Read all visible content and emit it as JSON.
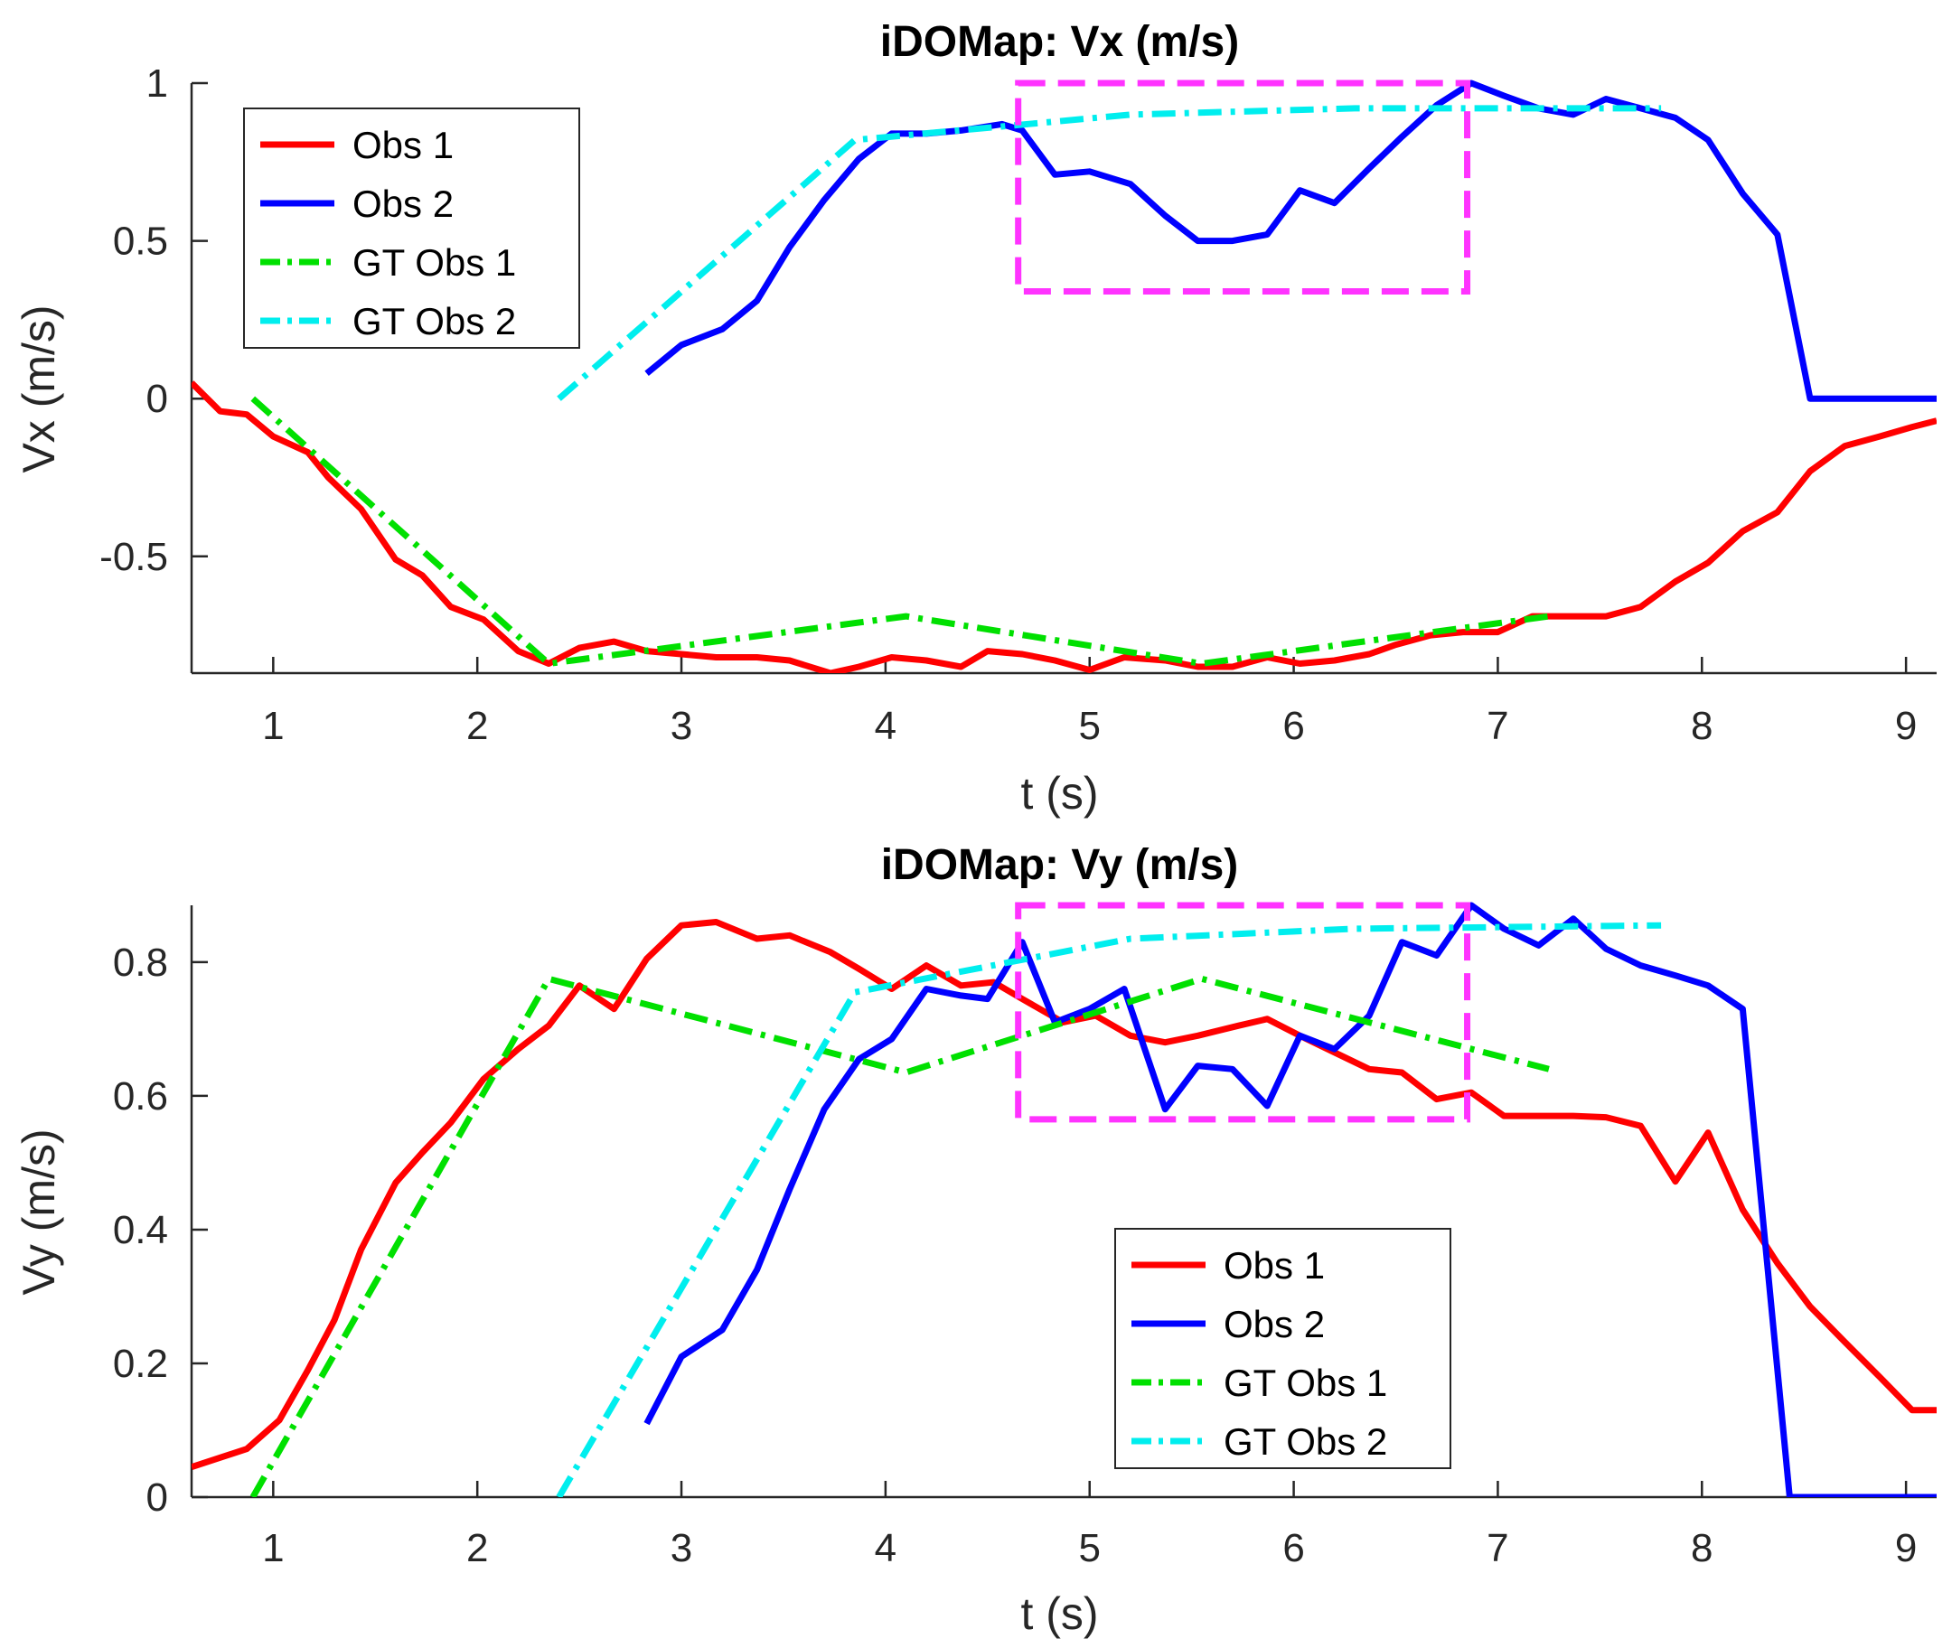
{
  "chart_data": [
    {
      "type": "line",
      "title": "iDOMap: Vx (m/s)",
      "xlabel": "t (s)",
      "ylabel": "Vx (m/s)",
      "xlim": [
        0.6,
        9.15
      ],
      "ylim": [
        -0.87,
        1.0
      ],
      "xticks": [
        1,
        2,
        3,
        4,
        5,
        6,
        7,
        8,
        9
      ],
      "xtick_labels": [
        "1",
        "2",
        "3",
        "4",
        "5",
        "6",
        "7",
        "8",
        "9"
      ],
      "yticks": [
        -0.5,
        0,
        0.5,
        1
      ],
      "ytick_labels": [
        "-0.5",
        "0",
        "0.5",
        "1"
      ],
      "legend_position": "top-left",
      "series": [
        {
          "name": "Obs 1",
          "color": "#ff0000",
          "style": "solid",
          "x": [
            0.6,
            0.74,
            0.87,
            1.0,
            1.17,
            1.27,
            1.43,
            1.6,
            1.73,
            1.87,
            2.03,
            2.2,
            2.35,
            2.5,
            2.67,
            2.83,
            3.0,
            3.17,
            3.37,
            3.53,
            3.73,
            3.87,
            4.03,
            4.2,
            4.37,
            4.5,
            4.67,
            4.83,
            5.0,
            5.17,
            5.37,
            5.53,
            5.7,
            5.87,
            6.03,
            6.2,
            6.37,
            6.5,
            6.67,
            6.83,
            7.0,
            7.17,
            7.37,
            7.53,
            7.7,
            7.87,
            8.03,
            8.2,
            8.37,
            8.53,
            8.7,
            8.87,
            9.03,
            9.15
          ],
          "values": [
            0.05,
            -0.04,
            -0.05,
            -0.12,
            -0.17,
            -0.25,
            -0.35,
            -0.51,
            -0.56,
            -0.66,
            -0.7,
            -0.8,
            -0.84,
            -0.79,
            -0.77,
            -0.8,
            -0.81,
            -0.82,
            -0.82,
            -0.83,
            -0.87,
            -0.85,
            -0.82,
            -0.83,
            -0.85,
            -0.8,
            -0.81,
            -0.83,
            -0.86,
            -0.82,
            -0.83,
            -0.85,
            -0.85,
            -0.82,
            -0.84,
            -0.83,
            -0.81,
            -0.78,
            -0.75,
            -0.74,
            -0.74,
            -0.69,
            -0.69,
            -0.69,
            -0.66,
            -0.58,
            -0.52,
            -0.42,
            -0.36,
            -0.23,
            -0.15,
            -0.12,
            -0.09,
            -0.07
          ]
        },
        {
          "name": "Obs 2",
          "color": "#0000ff",
          "style": "solid",
          "x": [
            2.83,
            3.0,
            3.2,
            3.37,
            3.53,
            3.7,
            3.87,
            4.03,
            4.2,
            4.37,
            4.57,
            4.67,
            4.83,
            5.0,
            5.2,
            5.37,
            5.53,
            5.7,
            5.87,
            6.03,
            6.2,
            6.37,
            6.53,
            6.7,
            6.87,
            7.03,
            7.2,
            7.37,
            7.53,
            7.7,
            7.87,
            8.03,
            8.2,
            8.37,
            8.53,
            8.63,
            8.8,
            8.97,
            9.15
          ],
          "values": [
            0.08,
            0.17,
            0.22,
            0.31,
            0.48,
            0.63,
            0.76,
            0.84,
            0.84,
            0.85,
            0.87,
            0.85,
            0.71,
            0.72,
            0.68,
            0.58,
            0.5,
            0.5,
            0.52,
            0.66,
            0.62,
            0.73,
            0.83,
            0.93,
            1.0,
            0.96,
            0.92,
            0.9,
            0.95,
            0.92,
            0.89,
            0.82,
            0.65,
            0.52,
            0.0,
            0.0,
            0.0,
            0.0,
            0.0
          ]
        },
        {
          "name": "GT Obs 1",
          "color": "#00e000",
          "style": "dashdot",
          "x": [
            0.9,
            2.35,
            4.1,
            5.55,
            7.25
          ],
          "values": [
            0.0,
            -0.84,
            -0.69,
            -0.84,
            -0.69
          ]
        },
        {
          "name": "GT Obs 2",
          "color": "#00eeee",
          "style": "dashdot",
          "x": [
            2.4,
            3.85,
            5.2,
            6.3,
            7.8
          ],
          "values": [
            0.0,
            0.82,
            0.9,
            0.92,
            0.92
          ]
        }
      ],
      "annotations": [
        {
          "type": "dashed-rectangle",
          "color": "#ff33ff",
          "x_range": [
            4.65,
            6.85
          ],
          "y_range": [
            0.34,
            1.0
          ]
        }
      ]
    },
    {
      "type": "line",
      "title": "iDOMap: Vy (m/s)",
      "xlabel": "t (s)",
      "ylabel": "Vy (m/s)",
      "xlim": [
        0.6,
        9.15
      ],
      "ylim": [
        0.0,
        0.885
      ],
      "xticks": [
        1,
        2,
        3,
        4,
        5,
        6,
        7,
        8,
        9
      ],
      "xtick_labels": [
        "1",
        "2",
        "3",
        "4",
        "5",
        "6",
        "7",
        "8",
        "9"
      ],
      "yticks": [
        0,
        0.2,
        0.4,
        0.6,
        0.8
      ],
      "ytick_labels": [
        "0",
        "0.2",
        "0.4",
        "0.6",
        "0.8"
      ],
      "legend_position": "bottom-right",
      "series": [
        {
          "name": "Obs 1",
          "color": "#ff0000",
          "style": "solid",
          "x": [
            0.6,
            0.87,
            1.03,
            1.17,
            1.3,
            1.43,
            1.6,
            1.73,
            1.87,
            2.03,
            2.2,
            2.35,
            2.5,
            2.67,
            2.83,
            3.0,
            3.17,
            3.37,
            3.53,
            3.73,
            3.87,
            4.03,
            4.2,
            4.37,
            4.53,
            4.67,
            4.87,
            5.03,
            5.2,
            5.37,
            5.53,
            5.73,
            5.87,
            6.03,
            6.2,
            6.37,
            6.53,
            6.7,
            6.87,
            7.03,
            7.2,
            7.37,
            7.53,
            7.7,
            7.87,
            8.03,
            8.2,
            8.37,
            8.53,
            8.7,
            8.87,
            9.03,
            9.15
          ],
          "values": [
            0.045,
            0.072,
            0.115,
            0.19,
            0.265,
            0.37,
            0.47,
            0.515,
            0.56,
            0.625,
            0.67,
            0.705,
            0.765,
            0.73,
            0.805,
            0.855,
            0.86,
            0.835,
            0.84,
            0.815,
            0.79,
            0.76,
            0.795,
            0.765,
            0.77,
            0.745,
            0.71,
            0.72,
            0.69,
            0.68,
            0.69,
            0.705,
            0.715,
            0.69,
            0.665,
            0.64,
            0.635,
            0.595,
            0.605,
            0.57,
            0.57,
            0.57,
            0.568,
            0.555,
            0.472,
            0.545,
            0.43,
            0.35,
            0.285,
            0.232,
            0.18,
            0.13,
            0.13
          ]
        },
        {
          "name": "Obs 2",
          "color": "#0000ff",
          "style": "solid",
          "x": [
            2.83,
            3.0,
            3.2,
            3.37,
            3.53,
            3.7,
            3.87,
            4.03,
            4.2,
            4.37,
            4.5,
            4.67,
            4.83,
            5.0,
            5.17,
            5.37,
            5.53,
            5.7,
            5.87,
            6.03,
            6.2,
            6.37,
            6.53,
            6.7,
            6.87,
            7.03,
            7.2,
            7.37,
            7.53,
            7.7,
            7.87,
            8.03,
            8.2,
            8.43,
            8.63,
            8.8,
            8.97,
            9.15
          ],
          "values": [
            0.11,
            0.21,
            0.25,
            0.34,
            0.46,
            0.58,
            0.655,
            0.685,
            0.76,
            0.75,
            0.745,
            0.83,
            0.71,
            0.73,
            0.76,
            0.58,
            0.645,
            0.64,
            0.585,
            0.69,
            0.67,
            0.72,
            0.83,
            0.81,
            0.885,
            0.85,
            0.825,
            0.865,
            0.82,
            0.795,
            0.78,
            0.765,
            0.73,
            0.0,
            0.0,
            0.0,
            0.0,
            0.0
          ]
        },
        {
          "name": "GT Obs 1",
          "color": "#00e000",
          "style": "dashdot",
          "x": [
            0.9,
            2.35,
            4.1,
            5.55,
            7.25
          ],
          "values": [
            0.0,
            0.775,
            0.635,
            0.775,
            0.64
          ]
        },
        {
          "name": "GT Obs 2",
          "color": "#00eeee",
          "style": "dashdot",
          "x": [
            2.4,
            3.85,
            5.2,
            6.3,
            7.8
          ],
          "values": [
            0.0,
            0.755,
            0.835,
            0.85,
            0.855
          ]
        }
      ],
      "annotations": [
        {
          "type": "dashed-rectangle",
          "color": "#ff33ff",
          "x_range": [
            4.65,
            6.85
          ],
          "y_range": [
            0.565,
            0.885
          ]
        }
      ]
    }
  ]
}
